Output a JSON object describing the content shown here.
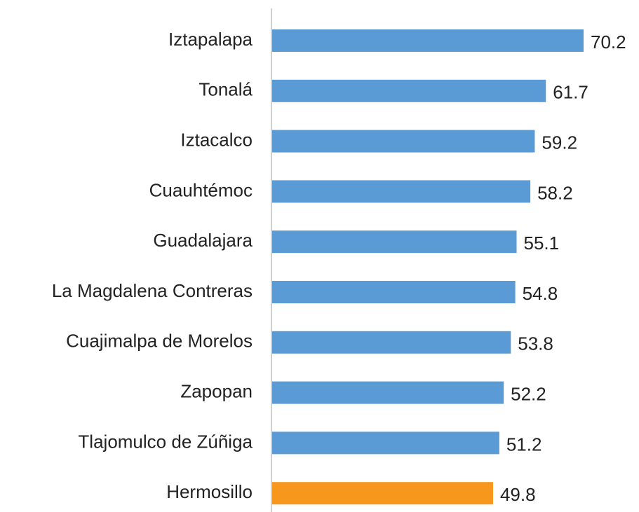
{
  "chart_data": {
    "type": "bar",
    "orientation": "horizontal",
    "categories": [
      "Iztapalapa",
      "Tonalá",
      "Iztacalco",
      "Cuauhtémoc",
      "Guadalajara",
      "La Magdalena Contreras",
      "Cuajimalpa de Morelos",
      "Zapopan",
      "Tlajomulco de Zúñiga",
      "Hermosillo"
    ],
    "values": [
      70.2,
      61.7,
      59.2,
      58.2,
      55.1,
      54.8,
      53.8,
      52.2,
      51.2,
      49.8
    ],
    "colors": [
      "#5b9bd5",
      "#5b9bd5",
      "#5b9bd5",
      "#5b9bd5",
      "#5b9bd5",
      "#5b9bd5",
      "#5b9bd5",
      "#5b9bd5",
      "#5b9bd5",
      "#f7981d"
    ]
  }
}
